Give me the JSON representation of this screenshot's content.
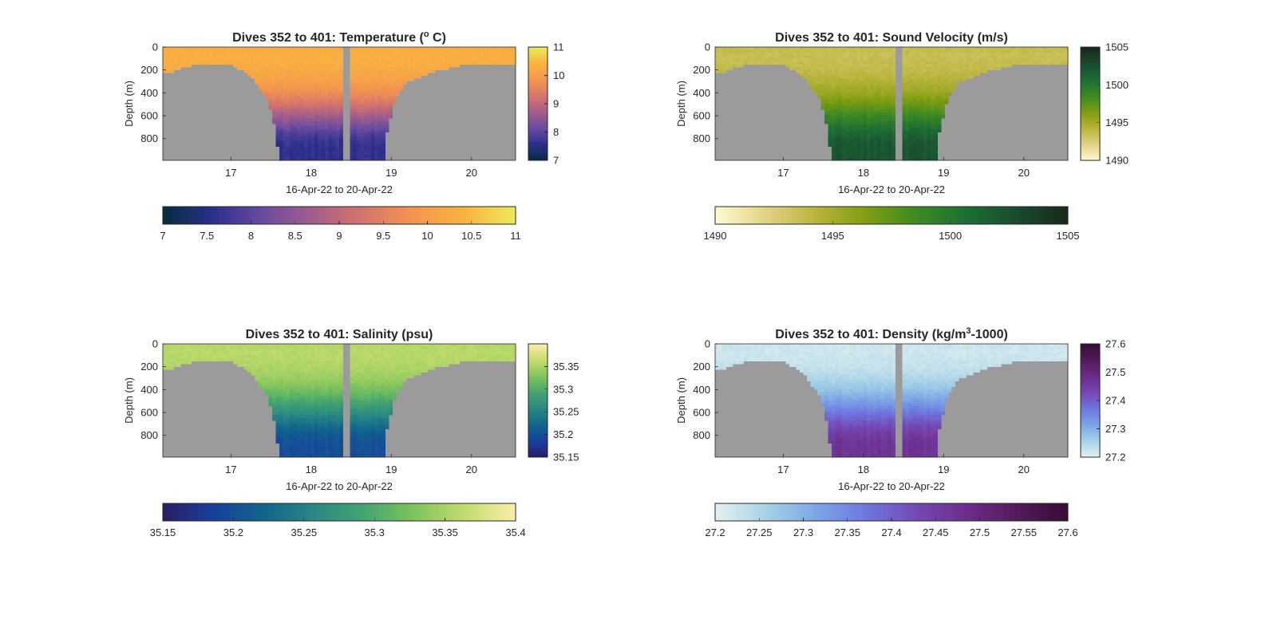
{
  "figure": {
    "background": "#ffffff",
    "axis_color": "#262626",
    "land_color": "#9b9b9b"
  },
  "chart_data": [
    {
      "type": "heatmap",
      "variable": "temperature",
      "title_main": "Dives 352 to 401: Temperature (",
      "title_sup": "o",
      "title_end": " C)",
      "xlabel": "16-Apr-22 to 20-Apr-22",
      "ylabel": "Depth (m)",
      "xlim": [
        16.15,
        20.55
      ],
      "ylim": [
        990,
        0
      ],
      "xticks": [
        "17",
        "18",
        "19",
        "20"
      ],
      "yticks": [
        "0",
        "200",
        "400",
        "600",
        "800"
      ],
      "clim": [
        7,
        11
      ],
      "colormap": "thermal",
      "colormap_stops": [
        "#062c3d",
        "#2b2f8c",
        "#6a4ba0",
        "#a45e8a",
        "#d6766a",
        "#f4964f",
        "#f9b440",
        "#ecea5b"
      ],
      "colorbar_vertical_ticks": [
        "7",
        "8",
        "9",
        "10",
        "11"
      ],
      "colorbar_horizontal_ticks": [
        "7",
        "7.5",
        "8",
        "8.5",
        "9",
        "9.5",
        "10",
        "10.5",
        "11"
      ],
      "surface_value": 10.35,
      "deep_value": 7.6,
      "mid_value": 9.3
    },
    {
      "type": "heatmap",
      "variable": "sound_velocity",
      "title_main": "Dives 352 to 401: Sound Velocity (m/s)",
      "title_sup": "",
      "title_end": "",
      "xlabel": "16-Apr-22 to 20-Apr-22",
      "ylabel": "Depth (m)",
      "xlim": [
        16.15,
        20.55
      ],
      "ylim": [
        990,
        0
      ],
      "xticks": [
        "17",
        "18",
        "19",
        "20"
      ],
      "yticks": [
        "0",
        "200",
        "400",
        "600",
        "800"
      ],
      "clim": [
        1490,
        1505
      ],
      "colormap": "speed",
      "colormap_stops": [
        "#fffbd2",
        "#e2d385",
        "#b9b43c",
        "#7f9d12",
        "#3d8a22",
        "#1d6e35",
        "#194a2d",
        "#18281a"
      ],
      "colorbar_vertical_ticks": [
        "1490",
        "1495",
        "1500",
        "1505"
      ],
      "colorbar_horizontal_ticks": [
        "1490",
        "1495",
        "1500",
        "1505"
      ],
      "surface_value": 1493.5,
      "deep_value": 1502.2,
      "mid_value": 1497.5
    },
    {
      "type": "heatmap",
      "variable": "salinity",
      "title_main": "Dives 352 to 401: Salinity (psu)",
      "title_sup": "",
      "title_end": "",
      "xlabel": "16-Apr-22 to 20-Apr-22",
      "ylabel": "Depth (m)",
      "xlim": [
        16.15,
        20.55
      ],
      "ylim": [
        990,
        0
      ],
      "xticks": [
        "17",
        "18",
        "19",
        "20"
      ],
      "yticks": [
        "0",
        "200",
        "400",
        "600",
        "800"
      ],
      "clim": [
        35.15,
        35.4
      ],
      "colormap": "haline",
      "colormap_stops": [
        "#291d64",
        "#183f9e",
        "#10668b",
        "#2b8784",
        "#43a56f",
        "#80c45c",
        "#c3dc6d",
        "#fbedab"
      ],
      "colorbar_vertical_ticks": [
        "35.15",
        "35.2",
        "35.25",
        "35.3",
        "35.35"
      ],
      "colorbar_horizontal_ticks": [
        "35.15",
        "35.2",
        "35.25",
        "35.3",
        "35.35",
        "35.4"
      ],
      "surface_value": 35.36,
      "deep_value": 35.2,
      "mid_value": 35.3
    },
    {
      "type": "heatmap",
      "variable": "density",
      "title_main": "Dives 352 to 401: Density (kg/m",
      "title_sup": "3",
      "title_end": "-1000)",
      "xlabel": "16-Apr-22 to 20-Apr-22",
      "ylabel": "Depth (m)",
      "xlim": [
        16.15,
        20.55
      ],
      "ylim": [
        990,
        0
      ],
      "xticks": [
        "17",
        "18",
        "19",
        "20"
      ],
      "yticks": [
        "0",
        "200",
        "400",
        "600",
        "800"
      ],
      "clim": [
        27.2,
        27.6
      ],
      "colormap": "dense",
      "colormap_stops": [
        "#e6f1f1",
        "#a6d3e6",
        "#7ba6e6",
        "#6d77df",
        "#7548b4",
        "#6d2c8a",
        "#551a5b",
        "#360d32"
      ],
      "colorbar_vertical_ticks": [
        "27.2",
        "27.3",
        "27.4",
        "27.5",
        "27.6"
      ],
      "colorbar_horizontal_ticks": [
        "27.2",
        "27.25",
        "27.3",
        "27.35",
        "27.4",
        "27.45",
        "27.5",
        "27.55",
        "27.6"
      ],
      "surface_value": 27.22,
      "deep_value": 27.47,
      "mid_value": 27.27
    }
  ]
}
